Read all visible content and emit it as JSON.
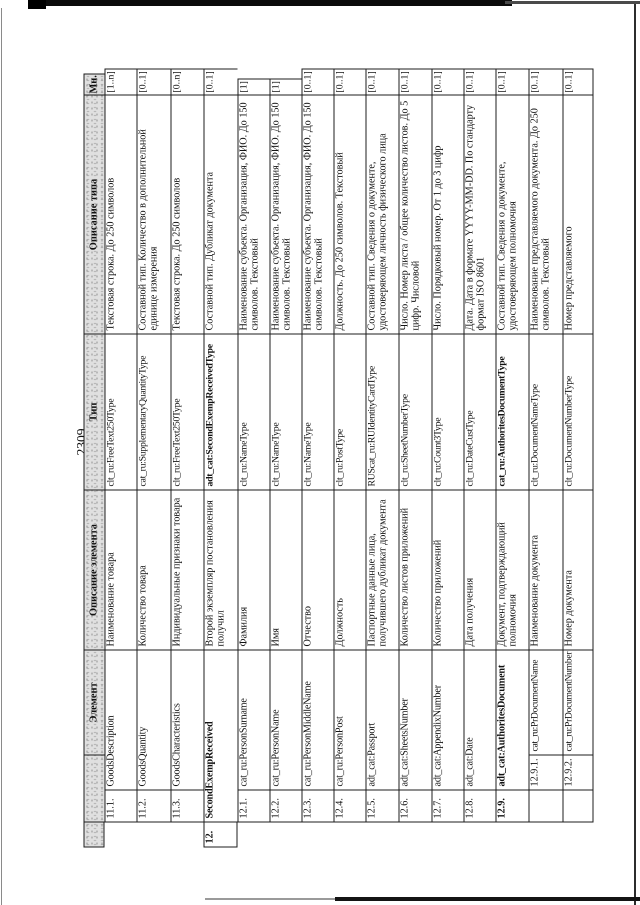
{
  "page": {
    "number": "2309"
  },
  "table": {
    "headers": {
      "num": "",
      "element": "Элемент",
      "element_desc": "Описание элемента",
      "type": "Тип",
      "type_desc": "Описание типа",
      "mult": "Мн."
    },
    "rows": [
      {
        "num": "11.1.",
        "element": "GoodsDescription",
        "element_desc": "Наименование товара",
        "type": "clt_ru:FreeText250Type",
        "type_desc": "Текстовая строка. До 250 символов",
        "mult": "[1..n]"
      },
      {
        "num": "11.2.",
        "element": "GoodsQuantity",
        "element_desc": "Количество товара",
        "type": "cat_ru:SupplementaryQuantityType",
        "type_desc": "Составной тип. Количество в дополнительной единице измерения",
        "mult": "[0..1]"
      },
      {
        "num": "11.3.",
        "element": "GoodsCharacteristics",
        "element_desc": "Индивидуальные признаки товара",
        "type": "clt_ru:FreeText250Type",
        "type_desc": "Текстовая строка. До 250 символов",
        "mult": "[0..n]"
      },
      {
        "num": "12.",
        "element": "SecondExempReceived",
        "element_desc": "Второй экземпляр постановления получил",
        "type": "adt_cat:SecondExempReceivedType",
        "type_desc": "Составной тип. Дубликат документа",
        "mult": "[0..1]"
      },
      {
        "num": "12.1.",
        "element": "cat_ru:PersonSurname",
        "element_desc": "Фамилия",
        "type": "clt_ru:NameType",
        "type_desc": "Наименование субъекта. Организация, ФИО. До 150 символов. Текстовый",
        "mult": "[1]"
      },
      {
        "num": "12.2.",
        "element": "cat_ru:PersonName",
        "element_desc": "Имя",
        "type": "clt_ru:NameType",
        "type_desc": "Наименование субъекта. Организация, ФИО. До 150 символов. Текстовый",
        "mult": "[1]"
      },
      {
        "num": "12.3.",
        "element": "cat_ru:PersonMiddleName",
        "element_desc": "Отчество",
        "type": "clt_ru:NameType",
        "type_desc": "Наименование субъекта. Организация, ФИО. До 150 символов. Текстовый",
        "mult": "[0..1]"
      },
      {
        "num": "12.4.",
        "element": "cat_ru:PersonPost",
        "element_desc": "Должность",
        "type": "clt_ru:PostType",
        "type_desc": "Должность. До 250 символов. Текстовый",
        "mult": "[0..1]"
      },
      {
        "num": "12.5.",
        "element": "adt_cat:Passport",
        "element_desc": "Паспортные данные лица, получившего дубликат документа",
        "type": "RUScat_ru:RUIdentityCardType",
        "type_desc": "Составной тип. Сведения о документе, удостоверяющем личность физического лица",
        "mult": "[0..1]"
      },
      {
        "num": "12.6.",
        "element": "adt_cat:SheetsNumber",
        "element_desc": "Количество листов приложений",
        "type": "clt_ru:SheetNumberType",
        "type_desc": "Число. Номер листа / общее количество листов. До 5 цифр. Числовой",
        "mult": "[0..1]"
      },
      {
        "num": "12.7.",
        "element": "adt_cat:AppendixNumber",
        "element_desc": "Количество приложений",
        "type": "clt_ru:Count3Type",
        "type_desc": "Число. Порядковый номер. От 1 до 3 цифр",
        "mult": "[0..1]"
      },
      {
        "num": "12.8.",
        "element": "adt_cat:Date",
        "element_desc": "Дата получения",
        "type": "clt_ru:DateCustType",
        "type_desc": "Дата. Дата в формате YYYY-MM-DD. По стандарту формат ISO 8601",
        "mult": "[0..1]"
      },
      {
        "num": "12.9.",
        "element": "adt_cat:AuthoritesDocument",
        "element_desc": "Документ, подтверждающий полномочия",
        "type": "cat_ru:AuthoritesDocumentType",
        "type_desc": "Составной тип. Сведения о документе, удостоверяющем полномочия",
        "mult": "[0..1]"
      },
      {
        "num": "12.9.1.",
        "element": "cat_ru:PrDocumentName",
        "element_desc": "Наименование документа",
        "type": "clt_ru:DocumentNameType",
        "type_desc": "Наименование представляемого документа. До 250 символов. Текстовый",
        "mult": "[0..1]"
      },
      {
        "num": "12.9.2.",
        "element": "cat_ru:PrDocumentNumber",
        "element_desc": "Номер документа",
        "type": "clt_ru:DocumentNumberType",
        "type_desc": "Номер представляемого",
        "mult": "[0..1]"
      }
    ]
  }
}
